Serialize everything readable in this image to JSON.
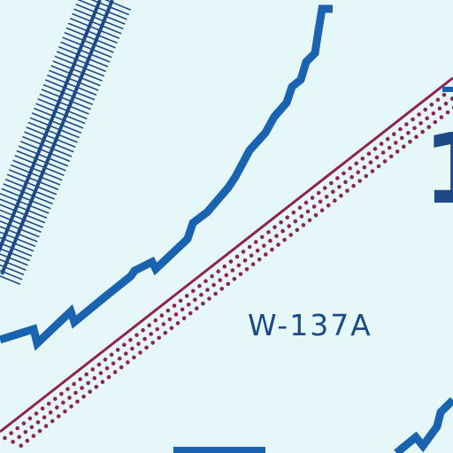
{
  "map": {
    "area_label": "W-137A",
    "partial_digit": "1",
    "colors": {
      "background": "#e6f7f9",
      "airway": "#1d4a86",
      "boundary_blue": "#1a63b0",
      "boundary_maroon": "#8e2450",
      "label_text": "#1d4a86"
    },
    "features": [
      {
        "name": "airway-hatched-band",
        "icon": "hatched-route-line"
      },
      {
        "name": "stepped-boundary-upper",
        "icon": "stepped-blue-line"
      },
      {
        "name": "stepped-boundary-lower",
        "icon": "stepped-blue-line"
      },
      {
        "name": "restricted-boundary-line",
        "icon": "maroon-dotted-line"
      }
    ]
  }
}
